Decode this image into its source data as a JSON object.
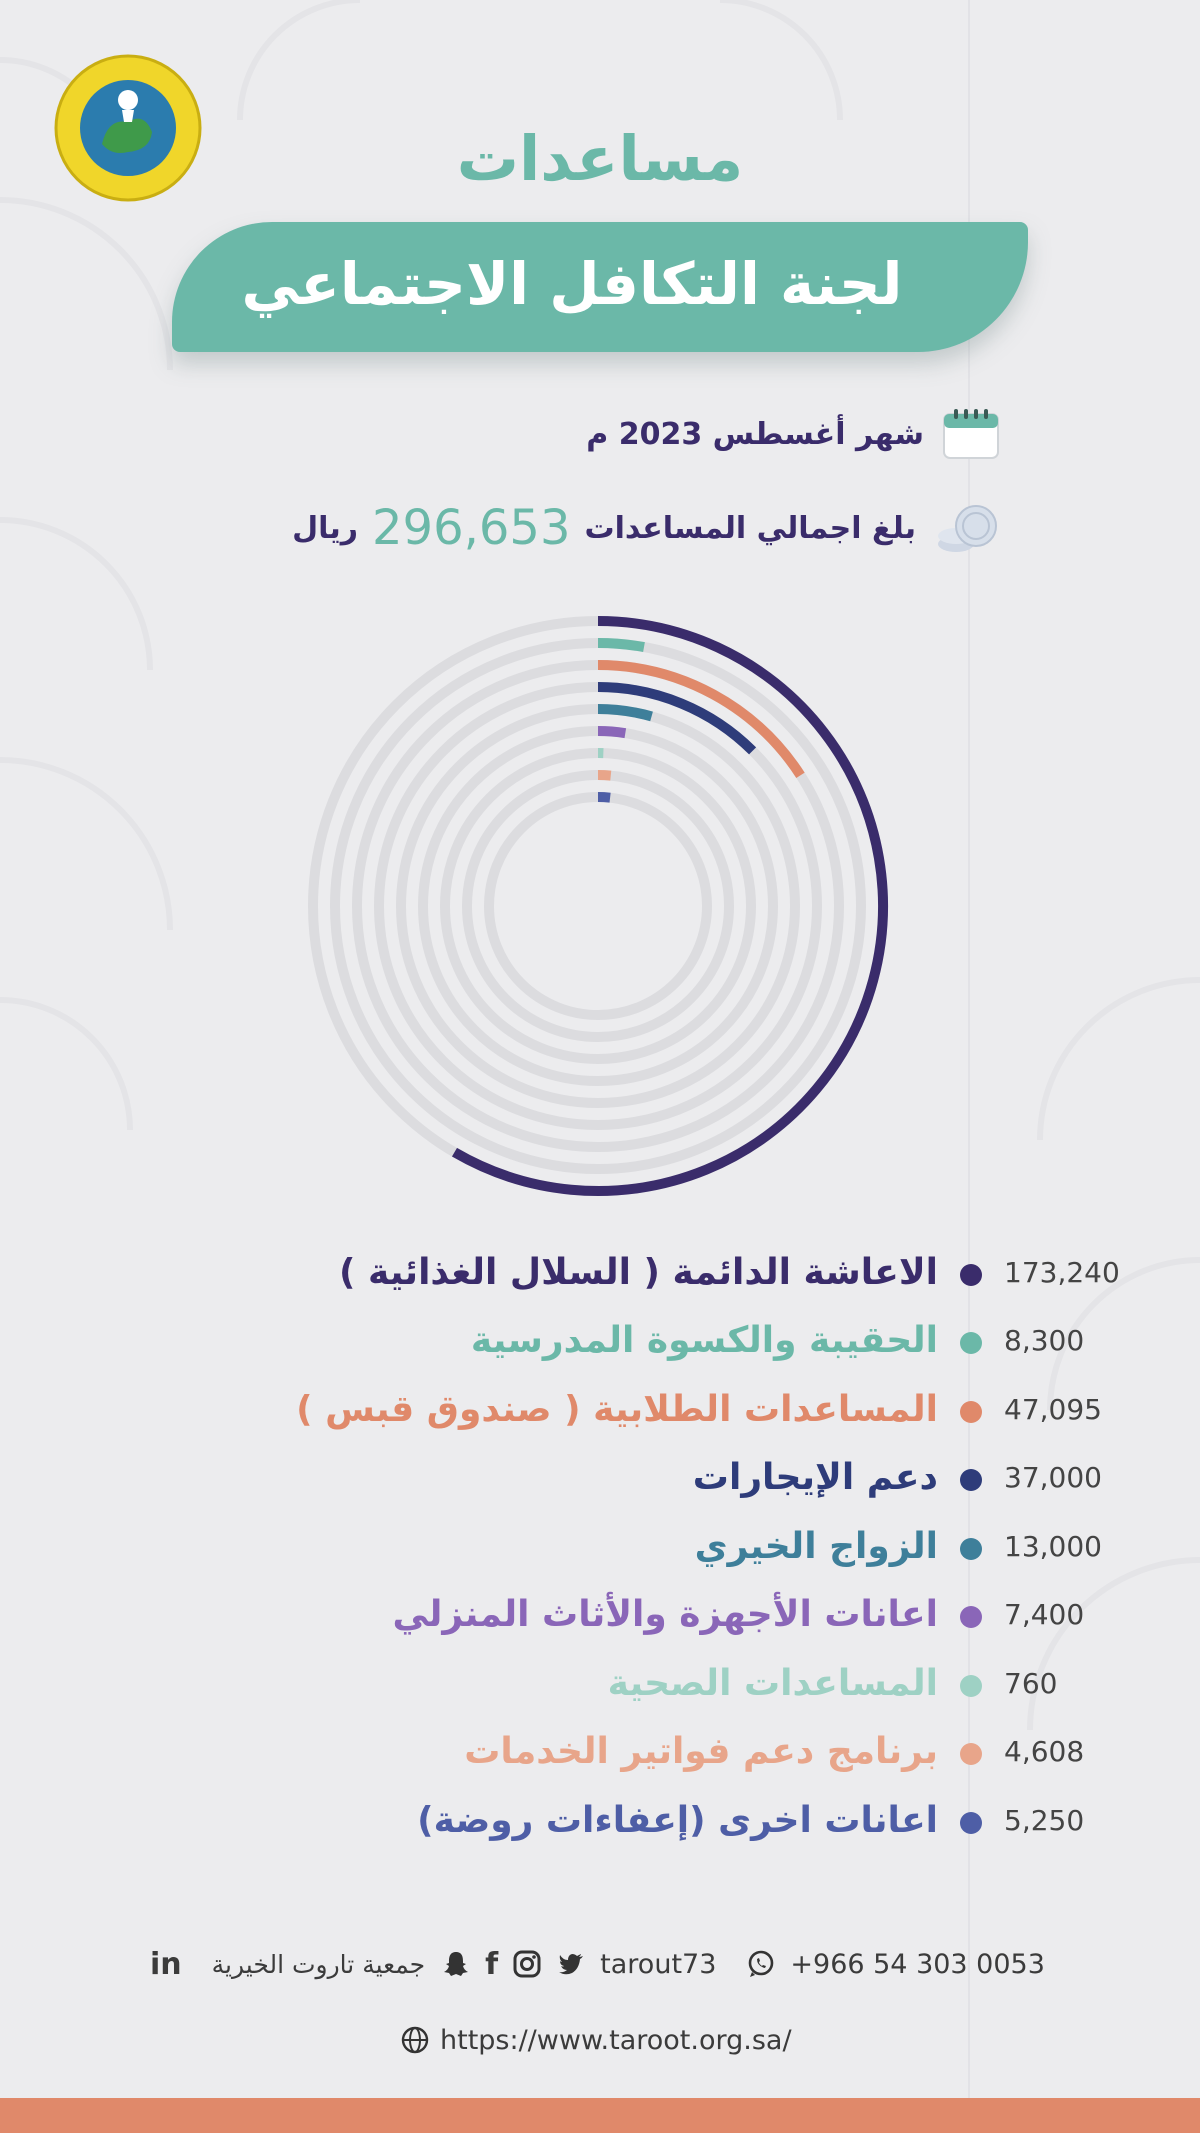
{
  "header": {
    "title_line1": "مساعدات",
    "title_line2": "لجنة التكافل الاجتماعي"
  },
  "info": {
    "month": "شهر أغسطس 2023 م",
    "total_label": "بلغ اجمالي المساعدات",
    "total_value": "296,653",
    "total_unit": "ريال",
    "calendar_icon": "calendar-icon",
    "coins_icon": "coins-icon"
  },
  "colors": {
    "teal": "#6bb8a8",
    "purple": "#3a2c6b",
    "orange": "#e0896a",
    "navy": "#2e3c7a",
    "bar_track": "#dcdcdf"
  },
  "chart_data": {
    "type": "radial-bar",
    "title": "",
    "max": 296653,
    "series": [
      {
        "name": "الاعاشة الدائمة ( السلال الغذائية )",
        "value": 173240,
        "value_label": "173,240",
        "color": "#3a2c6b"
      },
      {
        "name": "الحقيبة والكسوة المدرسية",
        "value": 8300,
        "value_label": "8,300",
        "color": "#6bb8a8"
      },
      {
        "name": "المساعدات الطلابية ( صندوق قبس )",
        "value": 47095,
        "value_label": "47,095",
        "color": "#e0896a"
      },
      {
        "name": "دعم الإيجارات",
        "value": 37000,
        "value_label": "37,000",
        "color": "#2e3c7a"
      },
      {
        "name": "الزواج الخيري",
        "value": 13000,
        "value_label": "13,000",
        "color": "#3e7f9a"
      },
      {
        "name": "اعانات الأجهزة والأثاث المنزلي",
        "value": 7400,
        "value_label": "7,400",
        "color": "#8a66b8"
      },
      {
        "name": "المساعدات الصحية",
        "value": 760,
        "value_label": "760",
        "color": "#9ed1c4"
      },
      {
        "name": "برنامج دعم فواتير الخدمات",
        "value": 4608,
        "value_label": "4,608",
        "color": "#e8a58a"
      },
      {
        "name": "اعانات اخرى (إعفاءات روضة)",
        "value": 5250,
        "value_label": "5,250",
        "color": "#4e5ea6"
      }
    ]
  },
  "footer": {
    "phone": "+966 54 303 0053",
    "handle": "tarout73",
    "org_name": "جمعية تاروت الخيرية",
    "linkedin": "in",
    "facebook": "f",
    "url": "https://www.taroot.org.sa/",
    "icons": [
      "whatsapp-icon",
      "twitter-icon",
      "instagram-icon",
      "facebook-icon",
      "snapchat-icon",
      "linkedin-icon",
      "globe-icon"
    ]
  }
}
